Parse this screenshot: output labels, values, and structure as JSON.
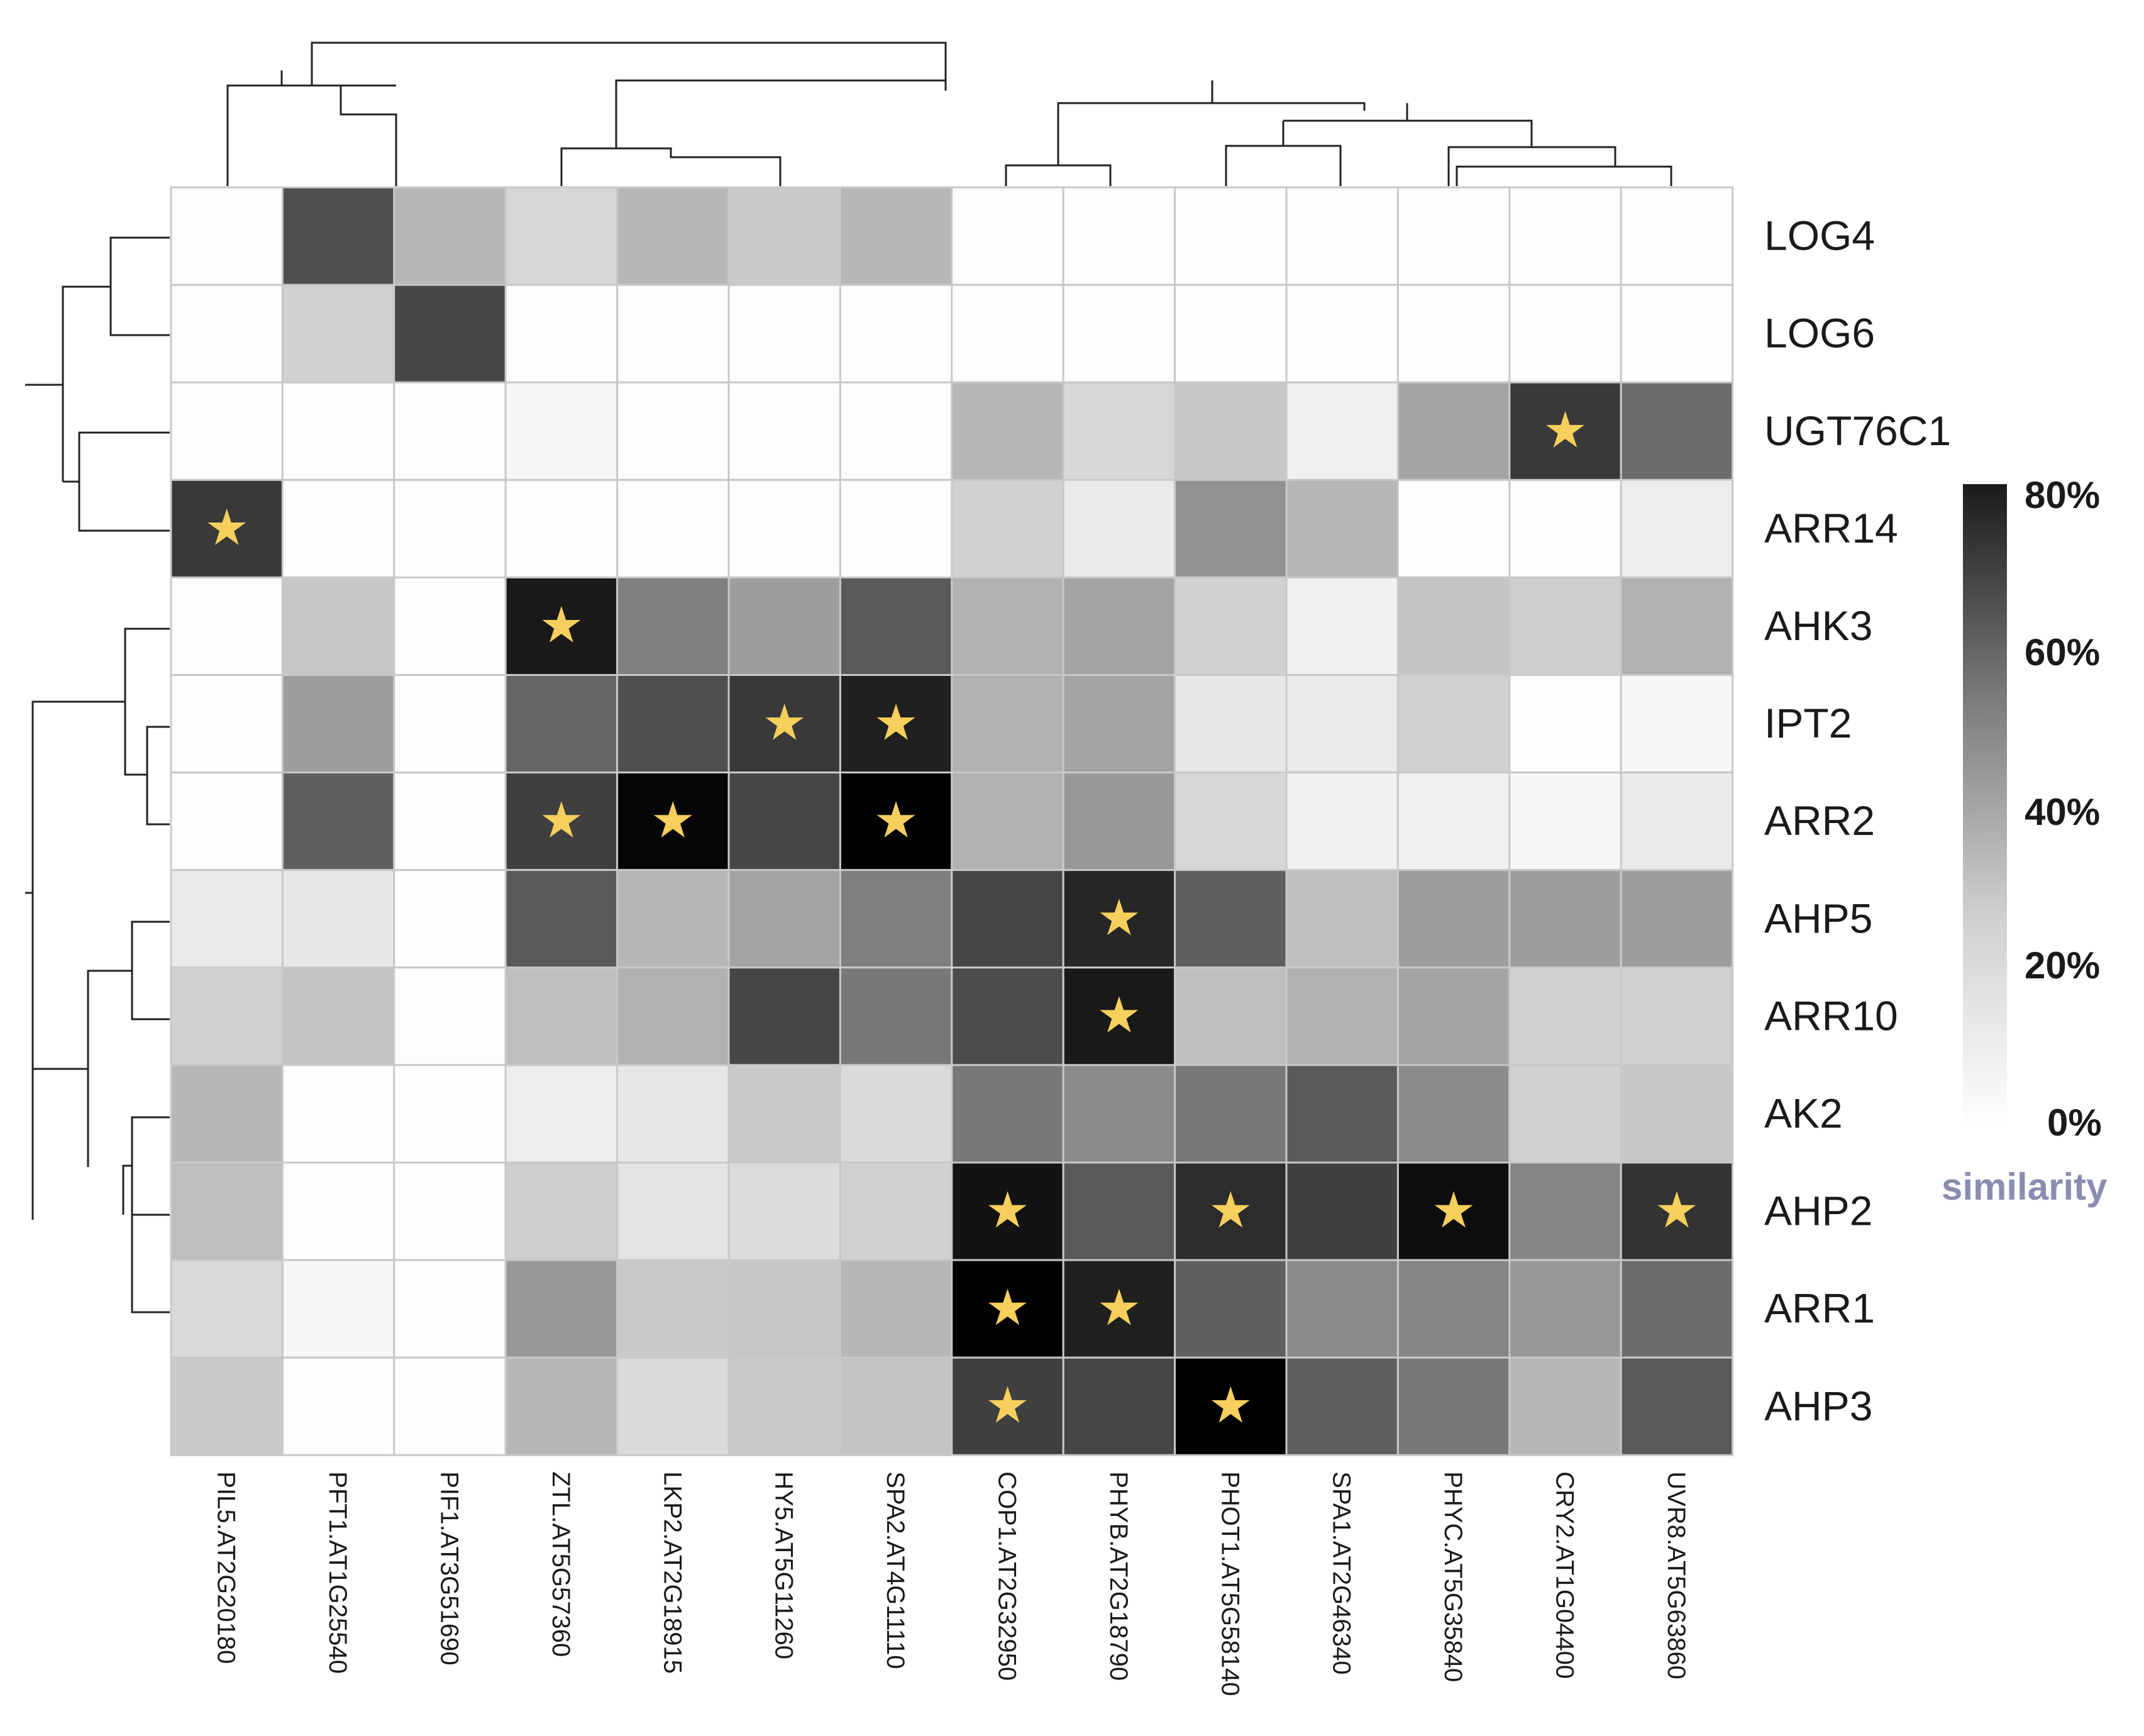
{
  "chart_data": {
    "type": "heatmap",
    "columns": [
      "PIL5.AT2G20180",
      "PFT1.AT1G25540",
      "PIF1.AT3G51690",
      "ZTL.AT5G57360",
      "LKP2.AT2G18915",
      "HY5.AT5G11260",
      "SPA2.AT4G11110",
      "COP1.AT2G32950",
      "PHYB.AT2G18790",
      "PHOT1.AT5G58140",
      "SPA1.AT2G46340",
      "PHYC.AT5G35840",
      "CRY2.AT1G04400",
      "UVR8.AT5G63860"
    ],
    "rows": [
      "LOG4",
      "LOG6",
      "UGT76C1",
      "ARR14",
      "AHK3",
      "IPT2",
      "ARR2",
      "AHP5",
      "ARR10",
      "AK2",
      "AHP2",
      "ARR1",
      "AHP3"
    ],
    "values": [
      [
        0,
        55,
        22,
        12,
        22,
        16,
        22,
        0,
        0,
        0,
        0,
        0,
        0,
        0
      ],
      [
        0,
        14,
        58,
        0,
        0,
        0,
        0,
        0,
        0,
        0,
        0,
        0,
        0,
        0
      ],
      [
        0,
        0,
        0,
        2,
        0,
        0,
        0,
        22,
        12,
        17,
        4,
        28,
        62,
        46
      ],
      [
        62,
        0,
        0,
        0,
        0,
        0,
        0,
        14,
        6,
        34,
        22,
        0,
        0,
        5
      ],
      [
        0,
        17,
        0,
        72,
        40,
        30,
        52,
        24,
        28,
        14,
        4,
        18,
        15,
        24
      ],
      [
        0,
        30,
        0,
        48,
        55,
        62,
        70,
        24,
        28,
        7,
        6,
        14,
        0,
        2
      ],
      [
        0,
        50,
        0,
        60,
        78,
        58,
        100,
        24,
        32,
        12,
        4,
        4,
        2,
        6
      ],
      [
        6,
        7,
        0,
        52,
        22,
        28,
        40,
        58,
        68,
        50,
        20,
        30,
        30,
        30
      ],
      [
        14,
        18,
        0,
        20,
        24,
        58,
        42,
        56,
        72,
        20,
        24,
        28,
        14,
        14
      ],
      [
        22,
        0,
        0,
        5,
        7,
        16,
        11,
        42,
        36,
        42,
        52,
        36,
        14,
        17
      ],
      [
        20,
        0,
        0,
        15,
        8,
        10,
        14,
        74,
        52,
        66,
        60,
        76,
        38,
        64
      ],
      [
        11,
        2,
        0,
        32,
        16,
        17,
        22,
        80,
        70,
        50,
        36,
        38,
        32,
        46
      ],
      [
        16,
        0,
        0,
        22,
        11,
        16,
        18,
        60,
        58,
        80,
        50,
        42,
        22,
        52
      ]
    ],
    "stars": [
      [
        3,
        0
      ],
      [
        2,
        12
      ],
      [
        4,
        3
      ],
      [
        5,
        5
      ],
      [
        5,
        6
      ],
      [
        6,
        3
      ],
      [
        6,
        4
      ],
      [
        6,
        6
      ],
      [
        7,
        8
      ],
      [
        8,
        8
      ],
      [
        10,
        7
      ],
      [
        10,
        9
      ],
      [
        10,
        11
      ],
      [
        10,
        13
      ],
      [
        11,
        7
      ],
      [
        11,
        8
      ],
      [
        12,
        7
      ],
      [
        12,
        9
      ]
    ],
    "star_color": "#f6cf5c",
    "colorscale": {
      "min_color": "#ffffff",
      "max_color": "#000000",
      "range": [
        0,
        80
      ]
    },
    "colorbar": {
      "ticks": [
        "80%",
        "60%",
        "40%",
        "20%",
        "0%"
      ],
      "title": "similarity",
      "title_color": "#8a8db0"
    },
    "dendrograms": {
      "column": true,
      "row": true
    }
  }
}
